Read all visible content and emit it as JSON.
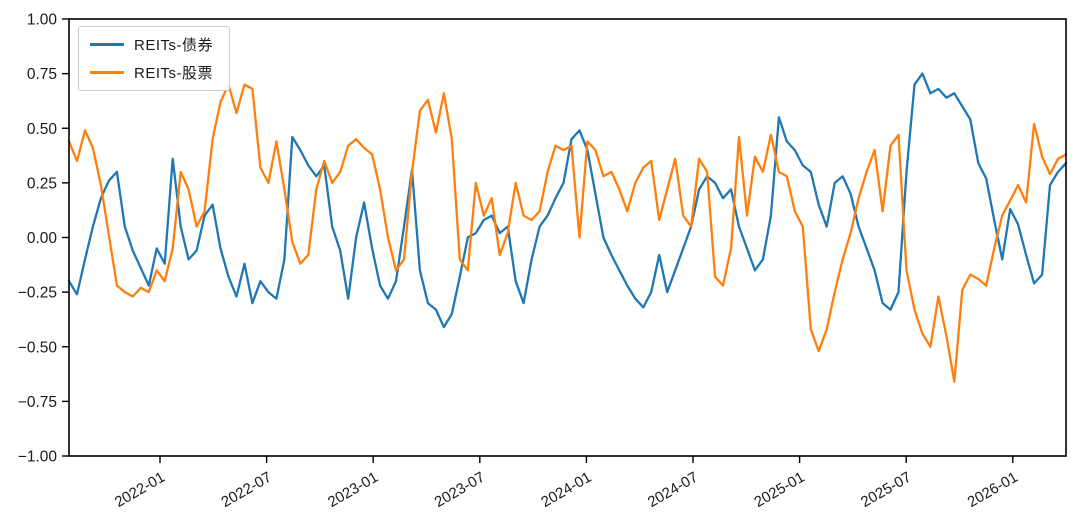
{
  "chart_data": {
    "type": "line",
    "title": "",
    "xlabel": "",
    "ylabel": "",
    "grid": false,
    "legend_position": "upper-left",
    "ylim": [
      -1.0,
      1.0
    ],
    "y_ticks": [
      1.0,
      0.75,
      0.5,
      0.25,
      0.0,
      -0.25,
      -0.5,
      -0.75,
      -1.0
    ],
    "y_tick_labels": [
      "1.00",
      "0.75",
      "0.50",
      "0.25",
      "0.00",
      "−0.25",
      "−0.50",
      "−0.75",
      "−1.00"
    ],
    "x_tick_labels": [
      "2022-01",
      "2022-07",
      "2023-01",
      "2023-07",
      "2024-01",
      "2024-07",
      "2025-01",
      "2025-07",
      "2026-01"
    ],
    "x_range_note": "uniform samples from approx 2021-08 to 2026-04",
    "series": [
      {
        "name": "REITs-债券",
        "color": "#1f77b4",
        "values": [
          -0.2,
          -0.26,
          -0.1,
          0.05,
          0.18,
          0.26,
          0.3,
          0.05,
          -0.06,
          -0.14,
          -0.22,
          -0.05,
          -0.12,
          0.36,
          0.05,
          -0.1,
          -0.06,
          0.1,
          0.15,
          -0.05,
          -0.18,
          -0.27,
          -0.12,
          -0.3,
          -0.2,
          -0.25,
          -0.28,
          -0.1,
          0.46,
          0.4,
          0.33,
          0.28,
          0.33,
          0.05,
          -0.06,
          -0.28,
          0.0,
          0.16,
          -0.05,
          -0.22,
          -0.28,
          -0.2,
          0.05,
          0.31,
          -0.15,
          -0.3,
          -0.33,
          -0.41,
          -0.35,
          -0.18,
          0.0,
          0.02,
          0.08,
          0.1,
          0.02,
          0.05,
          -0.2,
          -0.3,
          -0.1,
          0.05,
          0.1,
          0.18,
          0.25,
          0.45,
          0.49,
          0.4,
          0.2,
          0.0,
          -0.08,
          -0.15,
          -0.22,
          -0.28,
          -0.32,
          -0.25,
          -0.08,
          -0.25,
          -0.15,
          -0.05,
          0.05,
          0.22,
          0.28,
          0.25,
          0.18,
          0.22,
          0.05,
          -0.05,
          -0.15,
          -0.1,
          0.1,
          0.55,
          0.44,
          0.4,
          0.33,
          0.3,
          0.15,
          0.05,
          0.25,
          0.28,
          0.2,
          0.05,
          -0.05,
          -0.15,
          -0.3,
          -0.33,
          -0.25,
          0.3,
          0.7,
          0.75,
          0.66,
          0.68,
          0.64,
          0.66,
          0.6,
          0.54,
          0.34,
          0.27,
          0.08,
          -0.1,
          0.13,
          0.06,
          -0.08,
          -0.21,
          -0.17,
          0.24,
          0.3,
          0.34
        ]
      },
      {
        "name": "REITs-股票",
        "color": "#ff7f0e",
        "values": [
          0.44,
          0.35,
          0.49,
          0.41,
          0.24,
          0.01,
          -0.22,
          -0.25,
          -0.27,
          -0.23,
          -0.25,
          -0.15,
          -0.2,
          -0.05,
          0.3,
          0.22,
          0.05,
          0.12,
          0.45,
          0.62,
          0.7,
          0.57,
          0.7,
          0.68,
          0.32,
          0.25,
          0.44,
          0.22,
          -0.02,
          -0.12,
          -0.08,
          0.22,
          0.35,
          0.25,
          0.3,
          0.42,
          0.45,
          0.41,
          0.38,
          0.22,
          0.0,
          -0.15,
          -0.1,
          0.3,
          0.58,
          0.63,
          0.48,
          0.66,
          0.45,
          -0.1,
          -0.15,
          0.25,
          0.1,
          0.18,
          -0.08,
          0.02,
          0.25,
          0.1,
          0.08,
          0.12,
          0.3,
          0.42,
          0.4,
          0.42,
          0.0,
          0.44,
          0.4,
          0.28,
          0.3,
          0.22,
          0.12,
          0.25,
          0.32,
          0.35,
          0.08,
          0.22,
          0.36,
          0.1,
          0.05,
          0.36,
          0.3,
          -0.18,
          -0.22,
          -0.05,
          0.46,
          0.1,
          0.37,
          0.3,
          0.47,
          0.3,
          0.28,
          0.12,
          0.05,
          -0.42,
          -0.52,
          -0.42,
          -0.25,
          -0.1,
          0.02,
          0.18,
          0.3,
          0.4,
          0.12,
          0.42,
          0.47,
          -0.15,
          -0.33,
          -0.44,
          -0.5,
          -0.27,
          -0.45,
          -0.66,
          -0.24,
          -0.17,
          -0.19,
          -0.22,
          -0.05,
          0.1,
          0.17,
          0.24,
          0.16,
          0.52,
          0.37,
          0.29,
          0.36,
          0.38
        ]
      }
    ]
  }
}
